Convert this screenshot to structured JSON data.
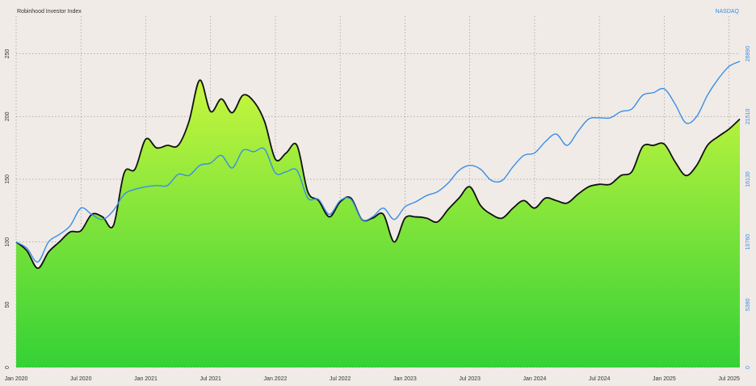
{
  "chart_data": {
    "type": "area",
    "x": [
      "2020-01",
      "2020-02",
      "2020-03",
      "2020-04",
      "2020-05",
      "2020-06",
      "2020-07",
      "2020-08",
      "2020-09",
      "2020-10",
      "2020-11",
      "2020-12",
      "2021-01",
      "2021-02",
      "2021-03",
      "2021-04",
      "2021-05",
      "2021-06",
      "2021-07",
      "2021-08",
      "2021-09",
      "2021-10",
      "2021-11",
      "2021-12",
      "2022-01",
      "2022-02",
      "2022-03",
      "2022-04",
      "2022-05",
      "2022-06",
      "2022-07",
      "2022-08",
      "2022-09",
      "2022-10",
      "2022-11",
      "2022-12",
      "2023-01",
      "2023-02",
      "2023-03",
      "2023-04",
      "2023-05",
      "2023-06",
      "2023-07",
      "2023-08",
      "2023-09",
      "2023-10",
      "2023-11",
      "2023-12",
      "2024-01",
      "2024-02",
      "2024-03",
      "2024-04",
      "2024-05",
      "2024-06",
      "2024-07",
      "2024-08",
      "2024-09",
      "2024-10",
      "2024-11",
      "2024-12",
      "2025-01",
      "2025-02",
      "2025-03",
      "2025-04",
      "2025-05",
      "2025-06",
      "2025-07",
      "2025-08"
    ],
    "series": [
      {
        "name": "Robinhood Investor Index",
        "color": "#111111",
        "fill_top": "#c8f63e",
        "fill_bottom": "#34d136",
        "values": [
          100,
          93,
          79,
          92,
          100,
          108,
          109,
          122,
          120,
          113,
          155,
          158,
          182,
          175,
          177,
          177,
          196,
          229,
          204,
          214,
          203,
          217,
          212,
          196,
          166,
          171,
          177,
          140,
          133,
          120,
          132,
          135,
          118,
          119,
          122,
          100,
          119,
          120,
          119,
          116,
          126,
          135,
          144,
          129,
          122,
          119,
          127,
          133,
          127,
          135,
          133,
          131,
          138,
          144,
          146,
          146,
          153,
          156,
          176,
          177,
          178,
          164,
          153,
          161,
          177,
          184,
          190,
          198
        ]
      },
      {
        "name": "NASDAQ",
        "color": "#3a8ee6",
        "axis": "y2",
        "values": [
          10760,
          10220,
          9040,
          10760,
          11400,
          12150,
          13660,
          13120,
          12690,
          13450,
          14840,
          15270,
          15490,
          15600,
          15600,
          16560,
          16460,
          17320,
          17530,
          18180,
          17100,
          18610,
          18500,
          18720,
          16670,
          16780,
          16890,
          14520,
          14410,
          13120,
          14310,
          14410,
          12690,
          12910,
          13660,
          12690,
          13770,
          14200,
          14740,
          15060,
          15810,
          16890,
          17320,
          16990,
          16030,
          16030,
          17210,
          18180,
          18390,
          19360,
          20010,
          19040,
          20220,
          21300,
          21400,
          21400,
          21940,
          22160,
          23340,
          23560,
          23880,
          22590,
          20970,
          21510,
          23340,
          24740,
          25810,
          26240
        ]
      }
    ],
    "xlim": [
      "2020-01",
      "2025-08"
    ],
    "xticks": [
      {
        "value": "2020-01",
        "label": "Jan 2020"
      },
      {
        "value": "2020-07",
        "label": "Jul 2020"
      },
      {
        "value": "2021-01",
        "label": "Jan 2021"
      },
      {
        "value": "2021-07",
        "label": "Jul 2021"
      },
      {
        "value": "2022-01",
        "label": "Jan 2022"
      },
      {
        "value": "2022-07",
        "label": "Jul 2022"
      },
      {
        "value": "2023-01",
        "label": "Jan 2023"
      },
      {
        "value": "2023-07",
        "label": "Jul 2023"
      },
      {
        "value": "2024-01",
        "label": "Jan 2024"
      },
      {
        "value": "2024-07",
        "label": "Jul 2024"
      },
      {
        "value": "2025-01",
        "label": "Jan 2025"
      },
      {
        "value": "2025-07",
        "label": "Jul 2025"
      }
    ],
    "ylim": [
      0,
      280
    ],
    "yticks": [
      0,
      50,
      100,
      150,
      200,
      250
    ],
    "y2lim": [
      0,
      30120
    ],
    "y2ticks": [
      0,
      5380,
      10760,
      16130,
      21510,
      26890
    ],
    "grid": true,
    "background": "#f0ebe7"
  }
}
